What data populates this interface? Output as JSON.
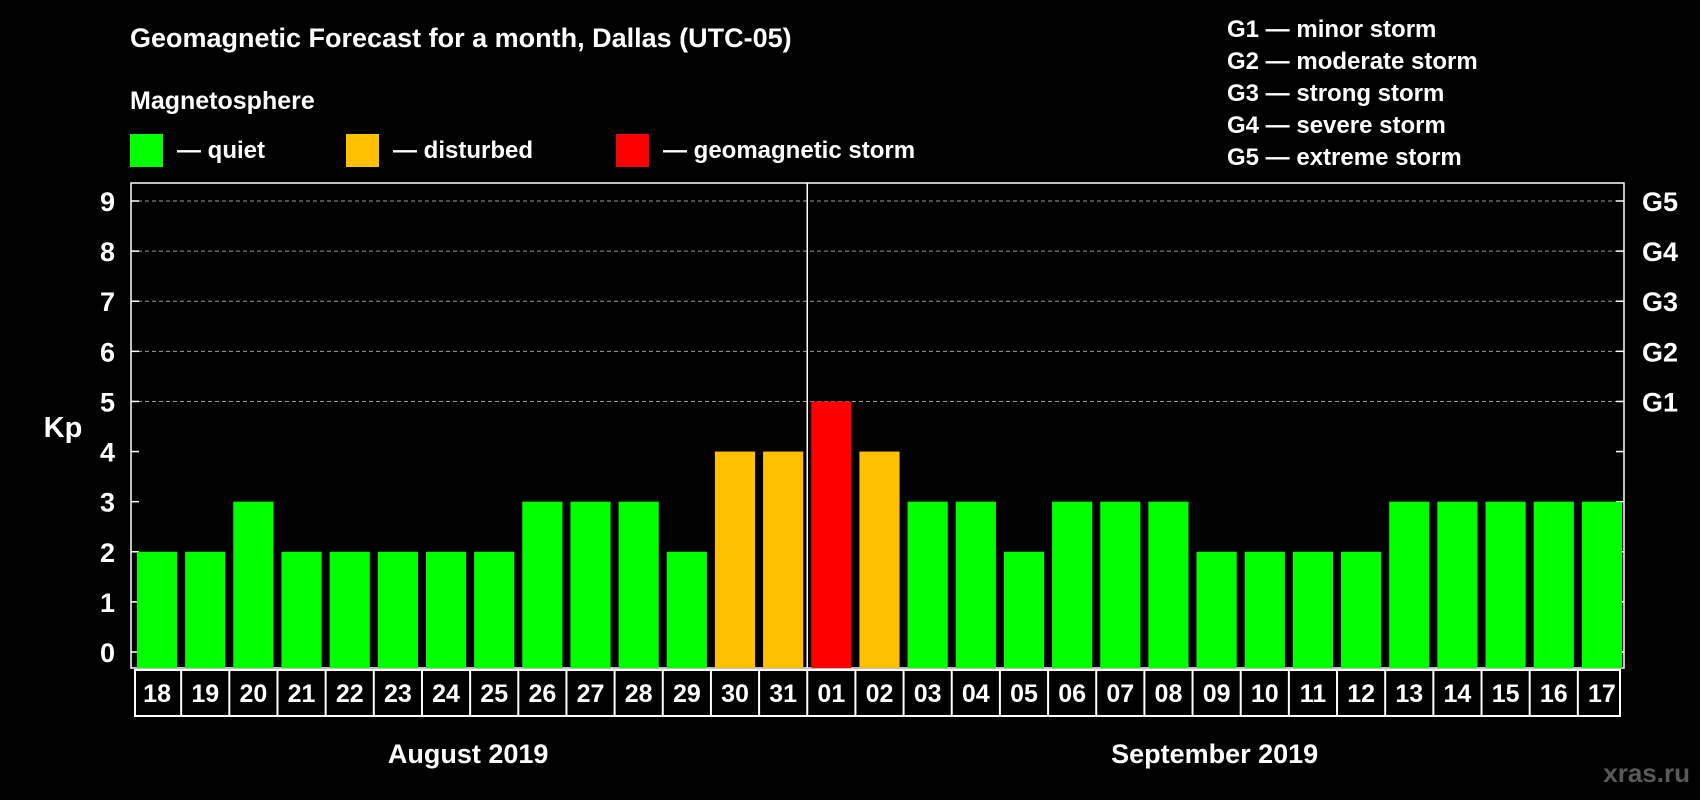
{
  "chart_data": {
    "type": "bar",
    "title": "Geomagnetic Forecast for a month, Dallas (UTC-05)",
    "legend_title": "Magnetosphere",
    "legend": [
      {
        "key": "quiet",
        "label": "— quiet",
        "color": "#00ff00"
      },
      {
        "key": "disturbed",
        "label": "— disturbed",
        "color": "#ffc000"
      },
      {
        "key": "storm",
        "label": "— geomagnetic storm",
        "color": "#ff0000"
      }
    ],
    "storm_scale": [
      "G1 — minor storm",
      "G2 — moderate storm",
      "G3 — strong storm",
      "G4 — severe storm",
      "G5 — extreme storm"
    ],
    "ylabel": "Kp",
    "ylim": [
      0,
      9
    ],
    "yticks": [
      "0",
      "1",
      "2",
      "3",
      "4",
      "5",
      "6",
      "7",
      "8",
      "9"
    ],
    "right_axis_labels": [
      {
        "value": 5,
        "label": "G1"
      },
      {
        "value": 6,
        "label": "G2"
      },
      {
        "value": 7,
        "label": "G3"
      },
      {
        "value": 8,
        "label": "G4"
      },
      {
        "value": 9,
        "label": "G5"
      }
    ],
    "categories": [
      "18",
      "19",
      "20",
      "21",
      "22",
      "23",
      "24",
      "25",
      "26",
      "27",
      "28",
      "29",
      "30",
      "31",
      "01",
      "02",
      "03",
      "04",
      "05",
      "06",
      "07",
      "08",
      "09",
      "10",
      "11",
      "12",
      "13",
      "14",
      "15",
      "16",
      "17"
    ],
    "values": [
      2,
      2,
      3,
      2,
      2,
      2,
      2,
      2,
      3,
      3,
      3,
      2,
      4,
      4,
      5,
      4,
      3,
      3,
      2,
      3,
      3,
      3,
      2,
      2,
      2,
      2,
      3,
      3,
      3,
      3,
      3
    ],
    "months": [
      {
        "label": "August 2019",
        "start_index": 0,
        "end_index": 13
      },
      {
        "label": "September 2019",
        "start_index": 14,
        "end_index": 30
      }
    ],
    "month_divider_before_index": 14,
    "grid": "dashed at levels 5–9"
  },
  "watermark": "xras.ru"
}
